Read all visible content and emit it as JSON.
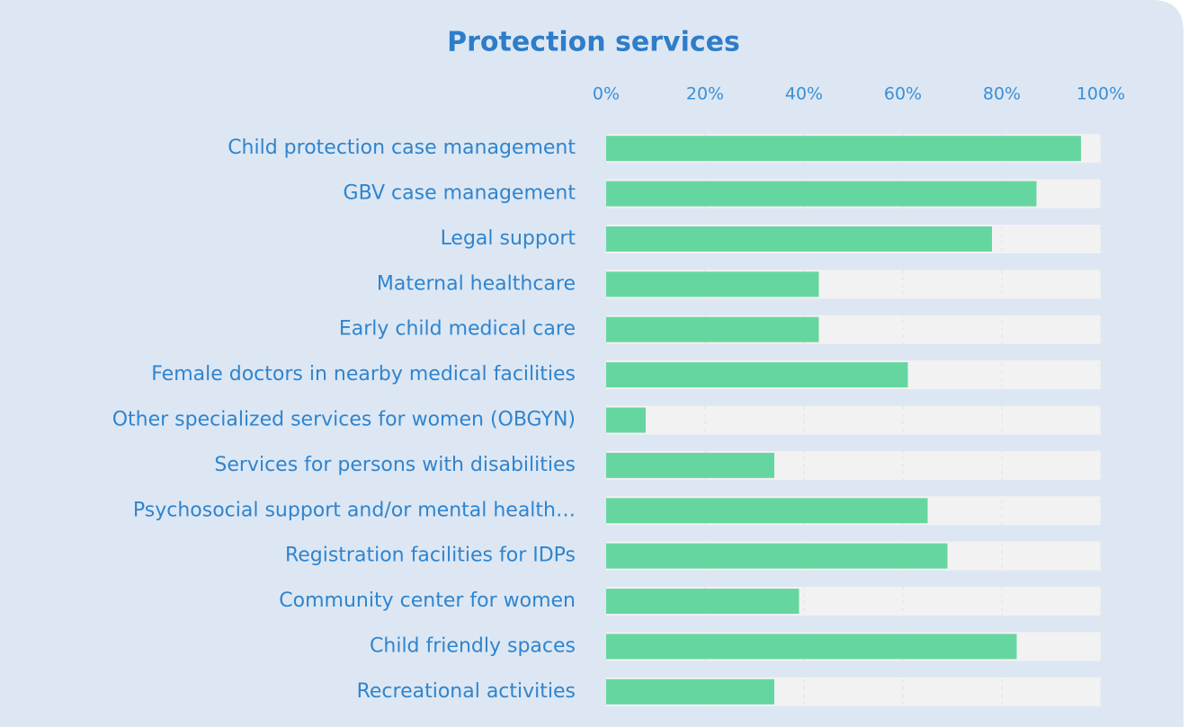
{
  "chart_data": {
    "type": "barh",
    "title": "Protection services",
    "categories": [
      "Child protection case management",
      "GBV case management",
      "Legal support",
      "Maternal healthcare",
      "Early child medical care",
      "Female doctors in nearby medical facilities",
      "Other specialized services for women (OBGYN)",
      "Services for persons with disabilities",
      "Psychosocial support and/or mental health…",
      "Registration facilities for IDPs",
      "Community center for women",
      "Child friendly spaces",
      "Recreational activities"
    ],
    "values": [
      96,
      87,
      78,
      43,
      43,
      61,
      8,
      34,
      65,
      69,
      39,
      83,
      34
    ],
    "color": "#66d6a0",
    "xlim": [
      0,
      100
    ],
    "xticks": [
      {
        "value": 0,
        "label": "0%"
      },
      {
        "value": 20,
        "label": "20%"
      },
      {
        "value": 40,
        "label": "40%"
      },
      {
        "value": 60,
        "label": "60%"
      },
      {
        "value": 80,
        "label": "80%"
      },
      {
        "value": 100,
        "label": "100%"
      }
    ],
    "grid": true
  }
}
